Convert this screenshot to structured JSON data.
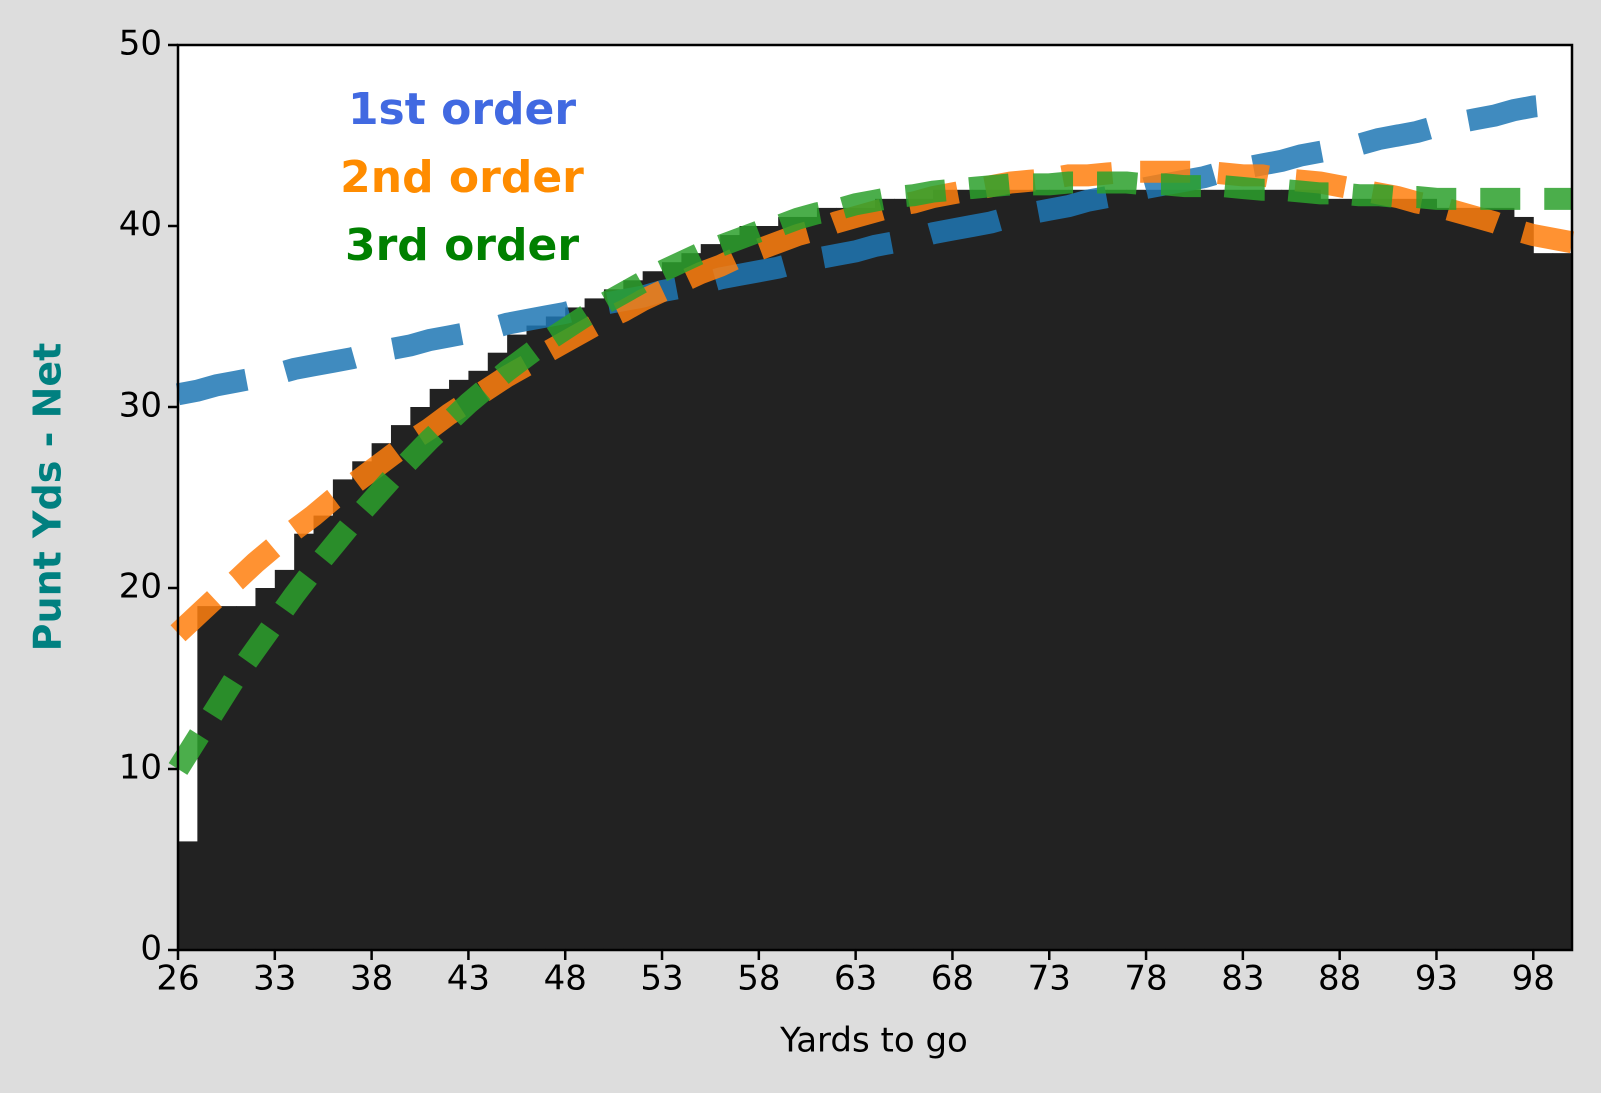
{
  "chart_data": {
    "type": "bar",
    "xlabel": "Yards to go",
    "ylabel": "Punt Yds - Net",
    "categories": [
      "26",
      null,
      null,
      null,
      null,
      "33",
      null,
      null,
      null,
      null,
      "38",
      null,
      null,
      null,
      null,
      "43",
      null,
      null,
      null,
      null,
      "48",
      null,
      null,
      null,
      null,
      "53",
      null,
      null,
      null,
      null,
      "58",
      null,
      null,
      null,
      null,
      "63",
      null,
      null,
      null,
      null,
      "68",
      null,
      null,
      null,
      null,
      "73",
      null,
      null,
      null,
      null,
      "78",
      null,
      null,
      null,
      null,
      "83",
      null,
      null,
      null,
      null,
      "88",
      null,
      null,
      null,
      null,
      "93",
      null,
      null,
      null,
      null,
      "98",
      null
    ],
    "ylim": [
      0,
      50
    ],
    "yticks": [
      0,
      10,
      20,
      30,
      40,
      50
    ],
    "series": [
      {
        "type": "bar",
        "color": "#222222",
        "values": [
          6,
          19,
          19,
          19,
          20,
          21,
          23,
          24,
          26,
          27,
          28,
          29,
          30,
          31,
          31.5,
          32,
          33,
          34,
          34.5,
          35,
          35.5,
          36,
          36.5,
          37,
          37.5,
          38,
          38.5,
          39,
          39.5,
          40,
          40,
          40.5,
          40.5,
          41,
          41,
          41,
          41.5,
          41.5,
          41.5,
          42,
          42,
          42,
          42,
          42,
          42,
          42,
          42,
          42,
          42,
          42,
          42,
          42,
          42,
          42,
          42,
          42,
          42,
          42,
          42,
          41.5,
          41.5,
          41.5,
          41.5,
          41.5,
          41.5,
          41,
          41,
          41,
          41,
          40.5,
          38.5,
          38.5
        ]
      },
      {
        "type": "line",
        "name": "1st order",
        "color": "#1f77b4",
        "text_color": "#4169e1",
        "values": [
          30.7,
          30.9,
          31.2,
          31.4,
          31.6,
          31.8,
          32.1,
          32.3,
          32.5,
          32.7,
          33.0,
          33.2,
          33.4,
          33.7,
          33.9,
          34.1,
          34.3,
          34.6,
          34.8,
          35.0,
          35.2,
          35.5,
          35.7,
          35.9,
          36.1,
          36.4,
          36.6,
          36.8,
          37.1,
          37.3,
          37.5,
          37.7,
          38.0,
          38.2,
          38.4,
          38.6,
          38.9,
          39.1,
          39.3,
          39.6,
          39.8,
          40.0,
          40.2,
          40.5,
          40.7,
          40.9,
          41.1,
          41.4,
          41.6,
          41.8,
          42.1,
          42.3,
          42.5,
          42.7,
          43.0,
          43.2,
          43.4,
          43.6,
          43.9,
          44.1,
          44.3,
          44.5,
          44.8,
          45.0,
          45.2,
          45.5,
          45.7,
          45.9,
          46.1,
          46.4,
          46.6,
          46.8
        ]
      },
      {
        "type": "line",
        "name": "2nd order",
        "color": "#ff7f0e",
        "text_color": "#ff8c00",
        "values": [
          17.5,
          18.5,
          19.5,
          20.4,
          21.4,
          22.3,
          23.2,
          24.0,
          24.9,
          25.7,
          26.5,
          27.3,
          28.1,
          28.8,
          29.6,
          30.3,
          31.0,
          31.7,
          32.3,
          33.0,
          33.6,
          34.2,
          34.8,
          35.3,
          35.9,
          36.4,
          36.9,
          37.4,
          37.8,
          38.3,
          38.7,
          39.1,
          39.5,
          39.8,
          40.2,
          40.5,
          40.8,
          41.1,
          41.3,
          41.6,
          41.8,
          42.0,
          42.2,
          42.4,
          42.5,
          42.6,
          42.8,
          42.8,
          42.9,
          43.0,
          43.0,
          43.0,
          43.0,
          43.0,
          42.9,
          42.8,
          42.8,
          42.6,
          42.5,
          42.4,
          42.2,
          42.0,
          41.8,
          41.6,
          41.3,
          41.1,
          40.8,
          40.5,
          40.2,
          39.8,
          39.5,
          39.1
        ]
      },
      {
        "type": "line",
        "name": "3rd order",
        "color": "#2ca02c",
        "text_color": "#008000",
        "values": [
          10,
          11.7,
          13.4,
          15.1,
          16.6,
          18.1,
          19.6,
          21.0,
          22.3,
          23.6,
          24.8,
          26.0,
          27.1,
          28.2,
          29.2,
          30.2,
          31.1,
          32.0,
          32.8,
          33.6,
          34.3,
          35.0,
          35.7,
          36.3,
          36.9,
          37.5,
          38.0,
          38.5,
          38.9,
          39.3,
          39.7,
          40.0,
          40.4,
          40.7,
          40.9,
          41.2,
          41.4,
          41.6,
          41.7,
          41.9,
          42.0,
          42.1,
          42.2,
          42.3,
          42.3,
          42.3,
          42.4,
          42.4,
          42.4,
          42.4,
          42.3,
          42.3,
          42.2,
          42.2,
          42.2,
          42.1,
          42.0,
          42.0,
          41.9,
          41.8,
          41.8,
          41.7,
          41.7,
          41.6,
          41.6,
          41.5,
          41.5,
          41.5,
          41.5,
          41.5,
          41.5,
          41.5
        ]
      }
    ]
  }
}
